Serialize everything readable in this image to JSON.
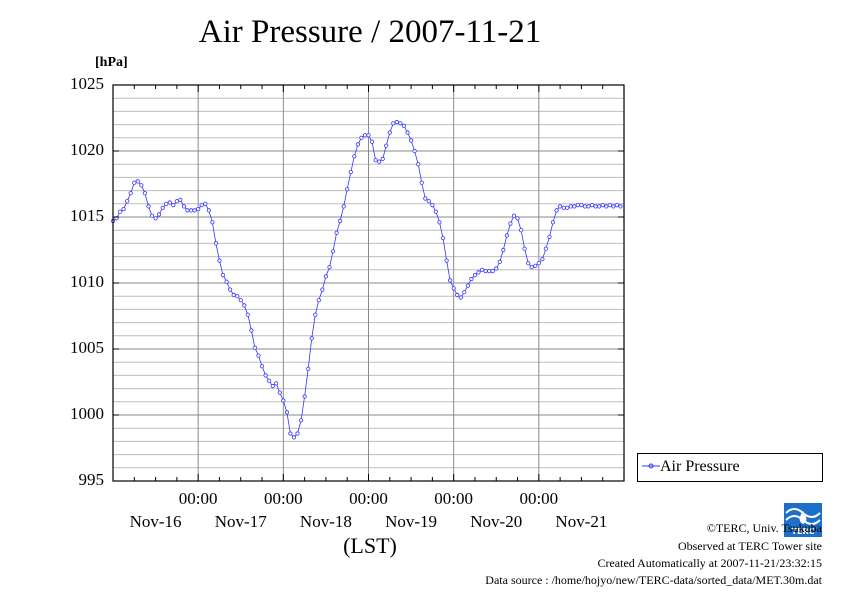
{
  "chart_data": {
    "type": "line",
    "title": "Air Pressure / 2007-11-21",
    "ylabel": "[hPa]",
    "xlabel": "(LST)",
    "ylim": [
      995,
      1025
    ],
    "yticks": [
      "995",
      "1000",
      "1005",
      "1010",
      "1015",
      "1020",
      "1025"
    ],
    "xtick_times": [
      "00:00",
      "00:00",
      "00:00",
      "00:00",
      "00:00"
    ],
    "xtick_days": [
      "Nov-16",
      "Nov-17",
      "Nov-18",
      "Nov-19",
      "Nov-20",
      "Nov-21"
    ],
    "xlim_hours": [
      0,
      144
    ],
    "grid": true,
    "legend_position": "bottom-right-outside",
    "series": [
      {
        "name": "Air Pressure",
        "color": "#3333ff",
        "marker": "circle",
        "time_hours": [
          0,
          1,
          2,
          3,
          4,
          5,
          6,
          7,
          8,
          9,
          10,
          11,
          12,
          13,
          14,
          15,
          16,
          17,
          18,
          19,
          20,
          21,
          22,
          23,
          24,
          25,
          26,
          27,
          28,
          29,
          30,
          31,
          32,
          33,
          34,
          35,
          36,
          37,
          38,
          39,
          40,
          41,
          42,
          43,
          44,
          45,
          46,
          47,
          48,
          49,
          50,
          51,
          52,
          53,
          54,
          55,
          56,
          57,
          58,
          59,
          60,
          61,
          62,
          63,
          64,
          65,
          66,
          67,
          68,
          69,
          70,
          71,
          72,
          73,
          74,
          75,
          76,
          77,
          78,
          79,
          80,
          81,
          82,
          83,
          84,
          85,
          86,
          87,
          88,
          89,
          90,
          91,
          92,
          93,
          94,
          95,
          96,
          97,
          98,
          99,
          100,
          101,
          102,
          103,
          104,
          105,
          106,
          107,
          108,
          109,
          110,
          111,
          112,
          113,
          114,
          115,
          116,
          117,
          118,
          119,
          120,
          121,
          122,
          123,
          124,
          125,
          126,
          127,
          128,
          129,
          130,
          131,
          132,
          133,
          134,
          135,
          136,
          137,
          138,
          139,
          140,
          141,
          142,
          143
        ],
        "values": [
          1014.7,
          1014.9,
          1015.4,
          1015.6,
          1016.2,
          1016.8,
          1017.6,
          1017.7,
          1017.4,
          1016.8,
          1015.8,
          1015.1,
          1014.9,
          1015.2,
          1015.7,
          1016.0,
          1016.1,
          1015.9,
          1016.2,
          1016.3,
          1015.8,
          1015.5,
          1015.5,
          1015.5,
          1015.6,
          1015.9,
          1016.0,
          1015.5,
          1014.6,
          1013.0,
          1011.7,
          1010.6,
          1010.1,
          1009.5,
          1009.1,
          1009.0,
          1008.7,
          1008.3,
          1007.6,
          1006.4,
          1005.1,
          1004.5,
          1003.7,
          1003.0,
          1002.6,
          1002.2,
          1002.4,
          1001.7,
          1001.1,
          1000.2,
          998.6,
          998.3,
          998.6,
          999.6,
          1001.4,
          1003.5,
          1005.8,
          1007.6,
          1008.7,
          1009.5,
          1010.5,
          1011.2,
          1012.4,
          1013.8,
          1014.7,
          1015.8,
          1017.1,
          1018.4,
          1019.6,
          1020.5,
          1021.0,
          1021.2,
          1021.2,
          1020.7,
          1019.3,
          1019.2,
          1019.4,
          1020.4,
          1021.4,
          1022.1,
          1022.2,
          1022.1,
          1021.9,
          1021.4,
          1020.8,
          1020.0,
          1019.0,
          1017.6,
          1016.4,
          1016.2,
          1015.9,
          1015.4,
          1014.6,
          1013.4,
          1011.7,
          1010.2,
          1009.6,
          1009.1,
          1008.9,
          1009.3,
          1009.8,
          1010.3,
          1010.6,
          1010.8,
          1011.0,
          1010.9,
          1010.9,
          1010.9,
          1011.1,
          1011.6,
          1012.5,
          1013.6,
          1014.5,
          1015.1,
          1014.9,
          1014.0,
          1012.6,
          1011.5,
          1011.2,
          1011.3,
          1011.5,
          1011.8,
          1012.6,
          1013.5,
          1014.6,
          1015.5,
          1015.8,
          1015.7,
          1015.7,
          1015.8,
          1015.8,
          1015.9,
          1015.9,
          1015.8,
          1015.8,
          1015.9,
          1015.8,
          1015.8,
          1015.9,
          1015.8,
          1015.9,
          1015.8,
          1015.9,
          1015.8
        ]
      }
    ]
  },
  "credits": {
    "copyright": "©TERC, Univ. Tsukuba",
    "observed": "Observed at TERC Tower site",
    "created": "Created Automatically at 2007-11-21/23:32:15",
    "source": "Data source : /home/hojyo/new/TERC-data/sorted_data/MET.30m.dat"
  },
  "logo_text": "TERC"
}
